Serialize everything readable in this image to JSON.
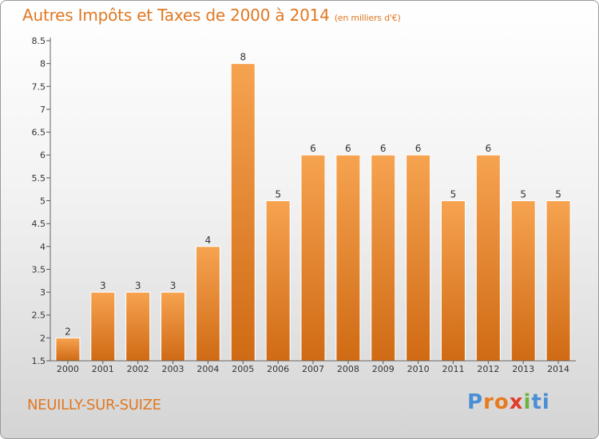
{
  "chart_data": {
    "type": "bar",
    "title": "Autres Impôts et Taxes de 2000 à 2014",
    "subtitle": "(en milliers d'€)",
    "categories": [
      "2000",
      "2001",
      "2002",
      "2003",
      "2004",
      "2005",
      "2006",
      "2007",
      "2008",
      "2009",
      "2010",
      "2011",
      "2012",
      "2013",
      "2014"
    ],
    "values": [
      2,
      3,
      3,
      3,
      4,
      8,
      5,
      6,
      6,
      6,
      6,
      5,
      6,
      5,
      5
    ],
    "data_labels": [
      "2",
      "3",
      "3",
      "3",
      "4",
      "8",
      "5",
      "6",
      "6",
      "6",
      "6",
      "5",
      "6",
      "5",
      "5"
    ],
    "y_ticks": [
      "1.5",
      "2",
      "2.5",
      "3",
      "3.5",
      "4",
      "4.5",
      "5",
      "5.5",
      "6",
      "6.5",
      "7",
      "7.5",
      "8",
      "8.5"
    ],
    "ylim": [
      1.5,
      8.5
    ],
    "grid": false,
    "xlabel": "",
    "ylabel": "",
    "bar_color": "#e88a2c",
    "title_color": "#e07822"
  },
  "footer": {
    "place": "NEUILLY-SUR-SUIZE",
    "logo_letters": [
      "P",
      "r",
      "o",
      "x",
      "i",
      "ti"
    ]
  }
}
